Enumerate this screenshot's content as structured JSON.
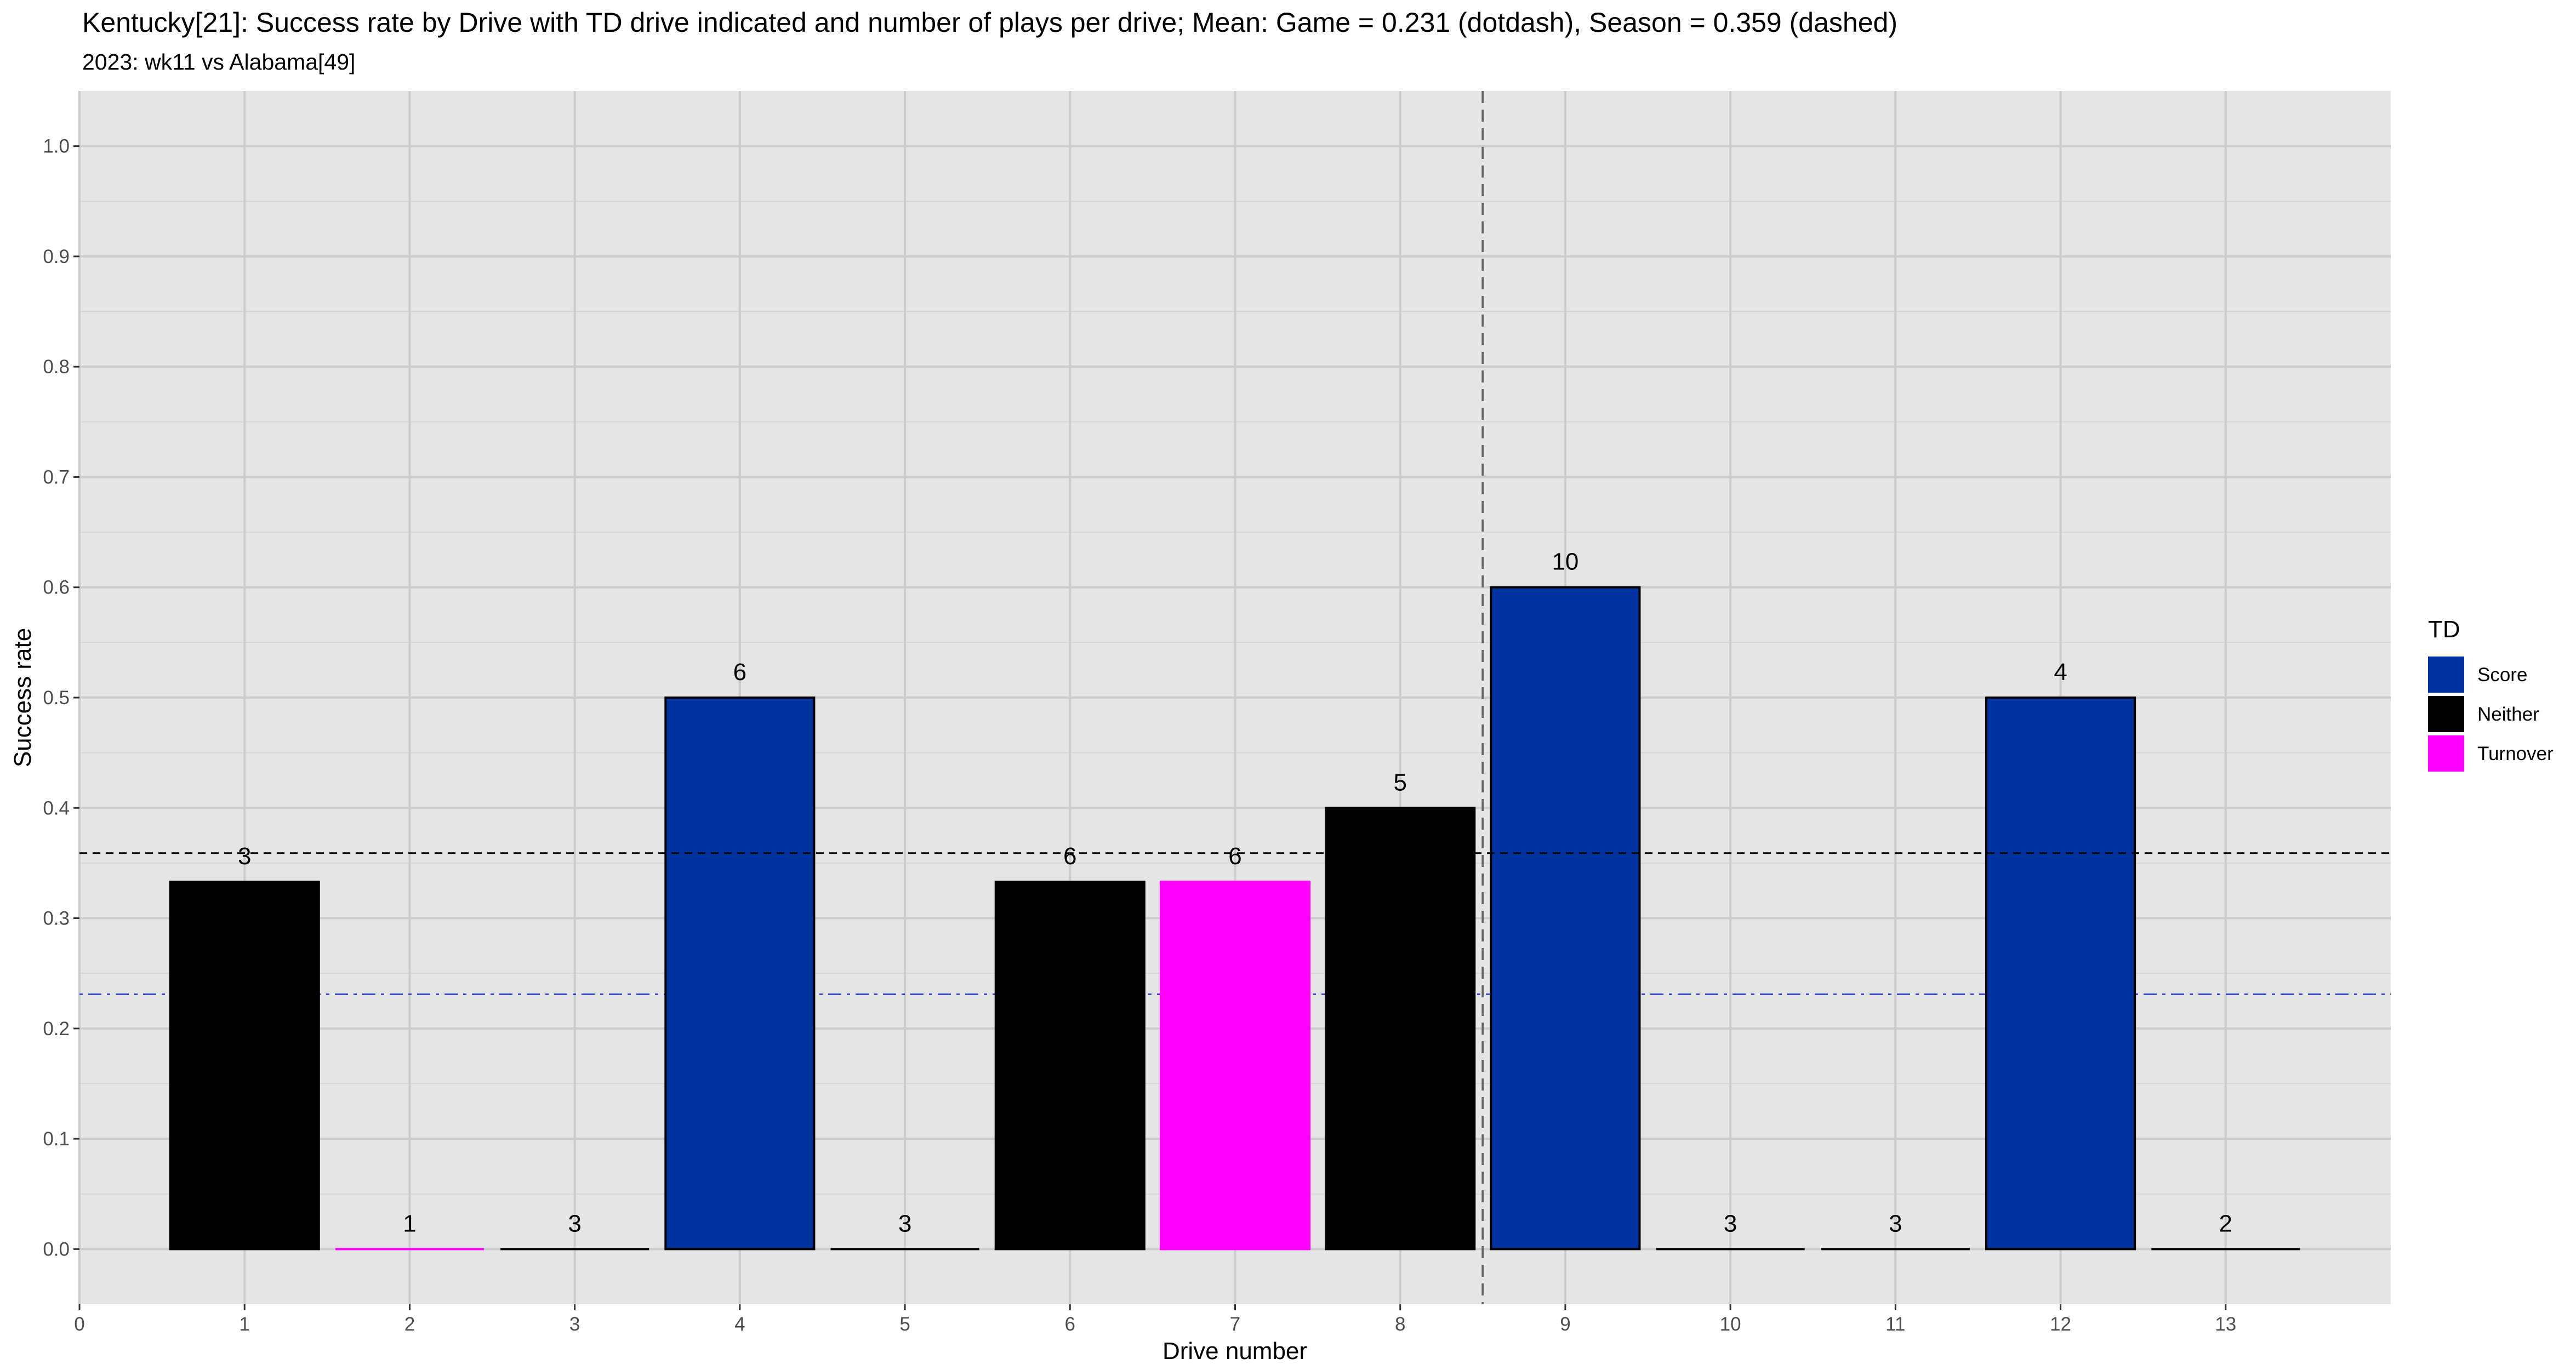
{
  "chart_data": {
    "type": "bar",
    "title": "Kentucky[21]: Success rate by Drive with TD drive indicated and number of plays per drive; Mean: Game = 0.231 (dotdash), Season = 0.359 (dashed)",
    "subtitle": "2023: wk11 vs Alabama[49]",
    "xlabel": "Drive number",
    "ylabel": "Success rate",
    "xlim": [
      0,
      14
    ],
    "x_ticks": [
      "0",
      "1",
      "2",
      "3",
      "4",
      "5",
      "6",
      "7",
      "8",
      "9",
      "10",
      "11",
      "12",
      "13"
    ],
    "ylim": [
      -0.05,
      1.05
    ],
    "y_ticks": [
      "0.0",
      "0.1",
      "0.2",
      "0.3",
      "0.4",
      "0.5",
      "0.6",
      "0.7",
      "0.8",
      "0.9",
      "1.0"
    ],
    "bars": [
      {
        "drive": 1,
        "value": 0.333,
        "plays": "3",
        "td": "Neither"
      },
      {
        "drive": 2,
        "value": 0.0,
        "plays": "1",
        "td": "Turnover"
      },
      {
        "drive": 3,
        "value": 0.0,
        "plays": "3",
        "td": "Neither"
      },
      {
        "drive": 4,
        "value": 0.5,
        "plays": "6",
        "td": "Score"
      },
      {
        "drive": 5,
        "value": 0.0,
        "plays": "3",
        "td": "Neither"
      },
      {
        "drive": 6,
        "value": 0.333,
        "plays": "6",
        "td": "Neither"
      },
      {
        "drive": 7,
        "value": 0.333,
        "plays": "6",
        "td": "Turnover"
      },
      {
        "drive": 8,
        "value": 0.4,
        "plays": "5",
        "td": "Neither"
      },
      {
        "drive": 9,
        "value": 0.6,
        "plays": "10",
        "td": "Score"
      },
      {
        "drive": 10,
        "value": 0.0,
        "plays": "3",
        "td": "Neither"
      },
      {
        "drive": 11,
        "value": 0.0,
        "plays": "3",
        "td": "Neither"
      },
      {
        "drive": 12,
        "value": 0.5,
        "plays": "4",
        "td": "Score"
      },
      {
        "drive": 13,
        "value": 0.0,
        "plays": "2",
        "td": "Neither"
      }
    ],
    "reference_lines": {
      "game_mean": {
        "value": 0.231,
        "style": "dotdash",
        "color": "#3344cc"
      },
      "season_mean": {
        "value": 0.359,
        "style": "dashed",
        "color": "#000000"
      },
      "vertical": {
        "x": 8.5,
        "style": "dashed",
        "color": "#666666"
      }
    },
    "legend": {
      "title": "TD",
      "position": "right",
      "items": [
        {
          "label": "Score",
          "color": "#0033a0"
        },
        {
          "label": "Neither",
          "color": "#000000"
        },
        {
          "label": "Turnover",
          "color": "#ff00ff"
        }
      ]
    },
    "colors": {
      "panel_background": "#e5e5e5",
      "grid": "#cccccc"
    },
    "grid": true
  }
}
